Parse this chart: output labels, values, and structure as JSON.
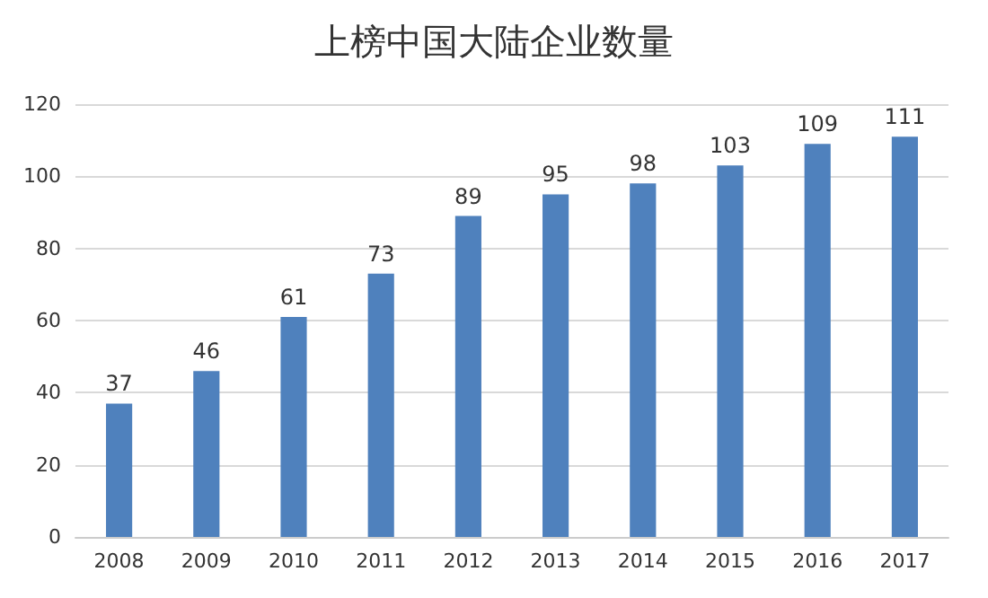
{
  "chart_data": {
    "type": "bar",
    "title": "上榜中国大陆企业数量",
    "categories": [
      "2008",
      "2009",
      "2010",
      "2011",
      "2012",
      "2013",
      "2014",
      "2015",
      "2016",
      "2017"
    ],
    "values": [
      37,
      46,
      61,
      73,
      89,
      95,
      98,
      103,
      109,
      111
    ],
    "color": "#4f81bd",
    "ylim": [
      0,
      120
    ],
    "yticks": [
      0,
      20,
      40,
      60,
      80,
      100,
      120
    ],
    "grid": "y",
    "data_labels": true
  }
}
